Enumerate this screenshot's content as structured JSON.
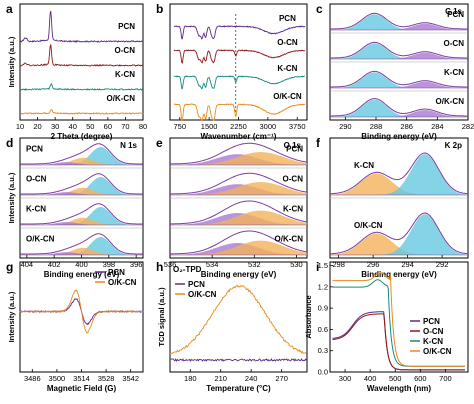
{
  "colors": {
    "PCN": "#5b2a86",
    "O-CN": "#8b1a1a",
    "K-CN": "#138a7e",
    "O/K-CN": "#e68a1e",
    "fill_blue": "#66c8e0",
    "fill_purple": "#a97ad3",
    "fill_orange": "#f2b25a",
    "fill_yellow": "#e7dc5a",
    "fill_green": "#7ac27a"
  },
  "chart_data": [
    {
      "panel": "a",
      "type": "line",
      "xlabel": "2 Theta (degree)",
      "ylabel": "Intensity (a.u.)",
      "xticks": [
        "10",
        "20",
        "30",
        "40",
        "50",
        "60",
        "70",
        "80"
      ],
      "xlim": [
        10,
        80
      ],
      "series": [
        {
          "name": "PCN",
          "peaks": [
            [
              13.1,
              0.12
            ],
            [
              27.4,
              1.0
            ]
          ]
        },
        {
          "name": "O-CN",
          "peaks": [
            [
              13.1,
              0.12
            ],
            [
              27.4,
              1.0
            ]
          ]
        },
        {
          "name": "K-CN",
          "peaks": [
            [
              27.8,
              0.4
            ]
          ]
        },
        {
          "name": "O/K-CN",
          "peaks": [
            [
              27.8,
              0.35
            ]
          ]
        }
      ],
      "labels": [
        "PCN",
        "O-CN",
        "K-CN",
        "O/K-CN"
      ]
    },
    {
      "panel": "b",
      "type": "line",
      "xlabel": "Wavenumber (cm⁻¹)",
      "ylabel": "",
      "xticks": [
        "750",
        "1500",
        "2250",
        "3000",
        "3750"
      ],
      "xlim": [
        500,
        4000
      ],
      "series": [
        {
          "name": "PCN"
        },
        {
          "name": "O-CN"
        },
        {
          "name": "K-CN"
        },
        {
          "name": "O/K-CN"
        }
      ],
      "labels": [
        "PCN",
        "O-CN",
        "K-CN",
        "O/K-CN"
      ],
      "marker_x": 2180
    },
    {
      "panel": "c",
      "title": "C 1s",
      "xlabel": "Binding energy (eV)",
      "ylabel": "",
      "xticks": [
        "290",
        "288",
        "286",
        "284",
        "282"
      ],
      "xlim": [
        291,
        282
      ],
      "peaks": [
        {
          "c": 288.1,
          "h": 0.75,
          "w": 0.8,
          "fill": "fill_blue"
        },
        {
          "c": 284.8,
          "h": 0.3,
          "w": 0.8,
          "fill": "fill_purple"
        }
      ],
      "labels": [
        "PCN",
        "O-CN",
        "K-CN",
        "O/K-CN"
      ]
    },
    {
      "panel": "d",
      "title": "N 1s",
      "xlabel": "Binding energy (eV)",
      "ylabel": "Intensity (a.u.)",
      "xticks": [
        "404",
        "402",
        "400",
        "398",
        "396"
      ],
      "xlim": [
        404.5,
        395.5
      ],
      "peaks": [
        {
          "c": 398.6,
          "h": 0.75,
          "w": 0.75,
          "fill": "fill_blue"
        },
        {
          "c": 399.9,
          "h": 0.3,
          "w": 0.8,
          "fill": "fill_orange"
        },
        {
          "c": 401.1,
          "h": 0.12,
          "w": 0.8,
          "fill": "fill_purple"
        }
      ],
      "labels": [
        "PCN",
        "O-CN",
        "K-CN",
        "O/K-CN"
      ]
    },
    {
      "panel": "e",
      "title": "O 1s",
      "xlabel": "Binding energy (eV)",
      "ylabel": "",
      "xticks": [
        "536",
        "534",
        "532",
        "530"
      ],
      "xlim": [
        536,
        529.5
      ],
      "peaks": [
        {
          "c": 532.8,
          "h": 0.5,
          "w": 1.0,
          "fill": "fill_purple"
        },
        {
          "c": 531.7,
          "h": 0.6,
          "w": 1.1,
          "fill": "fill_orange"
        }
      ],
      "labels": [
        "PCN",
        "O-CN",
        "K-CN",
        "O/K-CN"
      ]
    },
    {
      "panel": "f",
      "title": "K 2p",
      "xlabel": "Binding energy (eV)",
      "ylabel": "",
      "xticks": [
        "298",
        "296",
        "294",
        "292"
      ],
      "xlim": [
        298.5,
        290.5
      ],
      "peaks": [
        {
          "c": 295.8,
          "h": 0.45,
          "w": 0.9,
          "fill": "fill_orange"
        },
        {
          "c": 293.0,
          "h": 0.85,
          "w": 0.8,
          "fill": "fill_blue"
        }
      ],
      "labels": [
        "K-CN",
        "O/K-CN"
      ]
    },
    {
      "panel": "g",
      "type": "line",
      "xlabel": "Magnetic Field (G)",
      "ylabel": "Intensity (a.u.)",
      "xticks": [
        "3486",
        "3500",
        "3514",
        "3528",
        "3542"
      ],
      "xlim": [
        3479,
        3549
      ],
      "legend": [
        "PCN",
        "O/K-CN"
      ]
    },
    {
      "panel": "h",
      "type": "line",
      "title": "O₂-TPD",
      "xlabel": "Temperature (°C)",
      "ylabel": "TCD signal (a.u.)",
      "xticks": [
        "180",
        "210",
        "240",
        "270"
      ],
      "xlim": [
        160,
        295
      ],
      "legend": [
        "PCN",
        "O/K-CN"
      ]
    },
    {
      "panel": "i",
      "type": "line",
      "xlabel": "Wavelength (nm)",
      "ylabel": "Absorbance",
      "xticks": [
        "300",
        "400",
        "500",
        "600",
        "700"
      ],
      "xlim": [
        240,
        790
      ],
      "yticks": [
        "0.0",
        "0.3",
        "0.6",
        "0.9",
        "1.2",
        "1.5"
      ],
      "ylim": [
        0,
        1.55
      ],
      "legend": [
        "PCN",
        "O-CN",
        "K-CN",
        "O/K-CN"
      ],
      "series": [
        {
          "name": "PCN",
          "plateau": 0.85,
          "edge": 455
        },
        {
          "name": "O-CN",
          "plateau": 0.82,
          "edge": 455
        },
        {
          "name": "K-CN",
          "plateau": 1.3,
          "edge": 470
        },
        {
          "name": "O/K-CN",
          "plateau": 1.4,
          "edge": 480
        }
      ]
    }
  ]
}
